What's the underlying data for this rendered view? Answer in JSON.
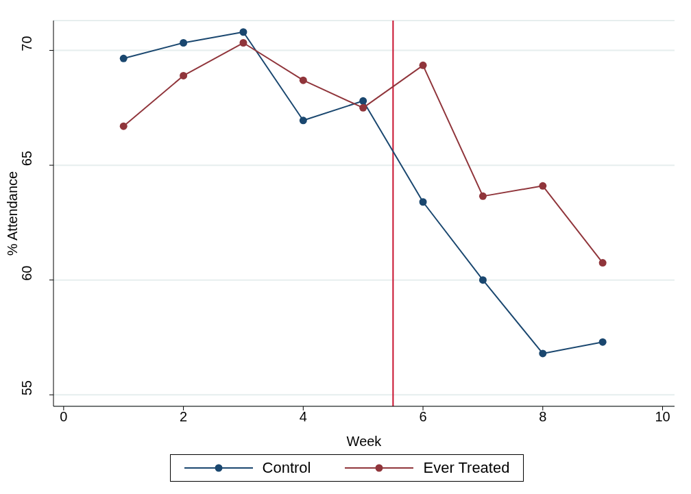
{
  "chart_data": {
    "type": "line",
    "xlabel": "Week",
    "ylabel": "% Attendance",
    "x": [
      1,
      2,
      3,
      4,
      5,
      6,
      7,
      8,
      9
    ],
    "series": [
      {
        "name": "Control",
        "color": "#1a476f",
        "values": [
          69.65,
          70.33,
          70.8,
          66.95,
          67.8,
          63.4,
          60.0,
          56.8,
          57.3
        ]
      },
      {
        "name": "Ever Treated",
        "color": "#90353b",
        "values": [
          66.7,
          68.9,
          70.33,
          68.7,
          67.5,
          69.35,
          63.65,
          64.1,
          60.75
        ]
      }
    ],
    "xlim": [
      -0.17,
      10.2
    ],
    "xticks": [
      0,
      2,
      4,
      6,
      8,
      10
    ],
    "ylim": [
      54.5,
      71.3
    ],
    "yticks": [
      55,
      60,
      65,
      70
    ],
    "ref_lines": [
      {
        "axis": "x",
        "value": 5.5,
        "color": "#c8102e"
      }
    ],
    "grid": "y",
    "legend": "bottom",
    "marker": "circle",
    "line_style": "solid"
  }
}
